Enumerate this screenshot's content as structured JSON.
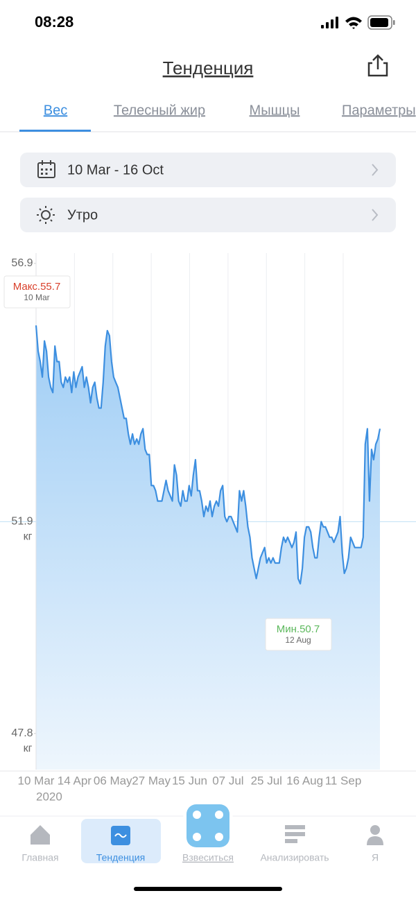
{
  "status_bar": {
    "time": "08:28"
  },
  "header": {
    "title": "Тенденция"
  },
  "tabs": [
    "Вес",
    "Телесный жир",
    "Мышцы",
    "Параметры"
  ],
  "filters": {
    "date_range": "10 Mar - 16 Oct",
    "time_of_day": "Утро"
  },
  "chart_data": {
    "type": "line",
    "color": "#3d8fe0",
    "ylim": [
      47.1,
      57.1
    ],
    "yticks": [
      56.9,
      51.9,
      47.8
    ],
    "unit": "кг",
    "x_axis_labels": [
      "10 Mar",
      "14 Apr",
      "06 May",
      "27 May",
      "15 Jun",
      "07 Jul",
      "25 Jul",
      "16 Aug",
      "11 Sep"
    ],
    "year": "2020",
    "max": {
      "label": "Макс.",
      "value": 55.7,
      "date": "10 Mar"
    },
    "min": {
      "label": "Мин.",
      "value": 50.7,
      "date": "12 Aug"
    },
    "values": [
      55.7,
      55.2,
      55.0,
      54.7,
      55.4,
      55.2,
      54.7,
      54.5,
      54.4,
      55.3,
      55.0,
      55.0,
      54.6,
      54.5,
      54.7,
      54.6,
      54.7,
      54.4,
      54.8,
      54.5,
      54.7,
      54.8,
      54.9,
      54.5,
      54.7,
      54.5,
      54.2,
      54.5,
      54.6,
      54.3,
      54.1,
      54.1,
      54.6,
      55.3,
      55.6,
      55.5,
      55.0,
      54.7,
      54.6,
      54.5,
      54.3,
      54.1,
      53.9,
      53.9,
      53.6,
      53.4,
      53.6,
      53.4,
      53.5,
      53.4,
      53.6,
      53.7,
      53.3,
      53.2,
      53.2,
      52.6,
      52.6,
      52.5,
      52.3,
      52.3,
      52.3,
      52.5,
      52.7,
      52.5,
      52.4,
      52.3,
      53.0,
      52.8,
      52.3,
      52.2,
      52.5,
      52.3,
      52.3,
      52.6,
      52.4,
      52.8,
      53.1,
      52.5,
      52.5,
      52.3,
      52.0,
      52.2,
      52.1,
      52.3,
      52.0,
      52.2,
      52.3,
      52.2,
      52.5,
      52.6,
      52.0,
      51.9,
      52.0,
      52.0,
      51.9,
      51.8,
      51.7,
      52.5,
      52.3,
      52.5,
      52.2,
      51.8,
      51.6,
      51.2,
      51.0,
      50.8,
      51.0,
      51.2,
      51.3,
      51.4,
      51.1,
      51.2,
      51.1,
      51.2,
      51.1,
      51.1,
      51.1,
      51.4,
      51.6,
      51.5,
      51.6,
      51.5,
      51.4,
      51.5,
      51.7,
      50.8,
      50.7,
      51.0,
      51.6,
      51.8,
      51.8,
      51.7,
      51.4,
      51.2,
      51.2,
      51.6,
      51.9,
      51.8,
      51.8,
      51.7,
      51.6,
      51.6,
      51.5,
      51.6,
      51.7,
      52.0,
      51.3,
      50.9,
      51.0,
      51.2,
      51.6,
      51.5,
      51.4,
      51.4,
      51.4,
      51.4,
      51.6,
      53.4,
      53.7,
      52.3,
      53.3,
      53.1,
      53.4,
      53.5,
      53.7
    ]
  },
  "nav": [
    "Главная",
    "Тенденция",
    "Взвеситься",
    "Анализировать",
    "Я"
  ]
}
